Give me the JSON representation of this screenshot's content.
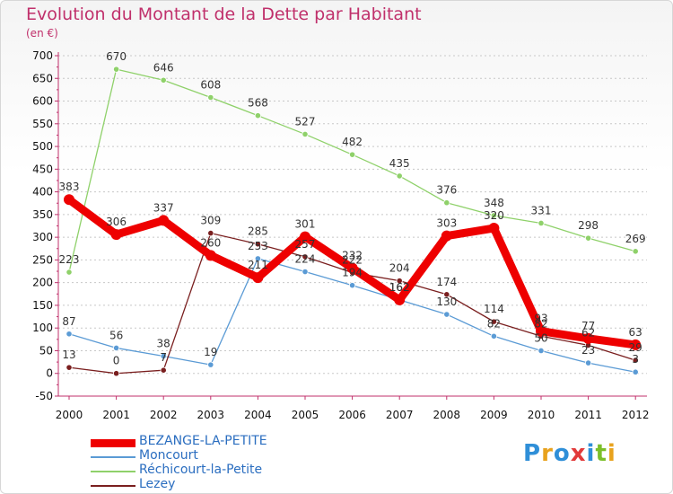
{
  "header": {
    "title": "Evolution du Montant de la Dette par Habitant",
    "subtitle": "(en €)"
  },
  "logo": {
    "text": "Proxiti",
    "colors": [
      "#2f8fd8",
      "#e8a21d",
      "#2f8fd8",
      "#e23a3a",
      "#2f8fd8",
      "#7bbf2a",
      "#e8a21d"
    ]
  },
  "chart_data": {
    "type": "line",
    "title": "Evolution du Montant de la Dette par Habitant",
    "subtitle": "(en €)",
    "x": [
      "2000",
      "2001",
      "2002",
      "2003",
      "2004",
      "2005",
      "2006",
      "2007",
      "2008",
      "2009",
      "2010",
      "2011",
      "2012"
    ],
    "y_ticks": [
      "700",
      "650",
      "600",
      "550",
      "500",
      "450",
      "400",
      "350",
      "300",
      "250",
      "200",
      "150",
      "100",
      "50",
      "0",
      "-50"
    ],
    "ylim": [
      -50,
      700
    ],
    "grid": "horizontal dotted",
    "legend": "bottom-left",
    "series": [
      {
        "name": "BEZANGE-LA-PETITE",
        "color": "#ee0000",
        "values": [
          383,
          306,
          337,
          260,
          211,
          301,
          232,
          162,
          303,
          320,
          93,
          77,
          63
        ],
        "labels": [
          "383",
          "306",
          "337",
          "260",
          "211",
          "301",
          "232",
          "162",
          "303",
          "320",
          "93",
          "77",
          "63"
        ]
      },
      {
        "name": "Moncourt",
        "color": "#5b9bd5",
        "values": [
          87,
          56,
          38,
          19,
          253,
          224,
          194,
          162,
          130,
          82,
          50,
          23,
          3
        ],
        "labels": [
          "87",
          "56",
          "38",
          "19",
          "253",
          "224",
          "194",
          "162",
          "130",
          "82",
          "50",
          "23",
          "3"
        ]
      },
      {
        "name": "Réchicourt-la-Petite",
        "color": "#8fd16a",
        "values": [
          223,
          670,
          646,
          608,
          568,
          527,
          482,
          435,
          376,
          348,
          331,
          298,
          269
        ],
        "labels": [
          "223",
          "670",
          "646",
          "608",
          "568",
          "527",
          "482",
          "435",
          "376",
          "348",
          "331",
          "298",
          "269"
        ]
      },
      {
        "name": "Lezey",
        "color": "#7a1f1f",
        "values": [
          13,
          0,
          7,
          309,
          285,
          257,
          222,
          204,
          174,
          114,
          82,
          62,
          29
        ],
        "labels": [
          "13",
          "0",
          "7",
          "309",
          "285",
          "257",
          "222",
          "204",
          "174",
          "114",
          "82",
          "62",
          "29"
        ]
      }
    ]
  }
}
